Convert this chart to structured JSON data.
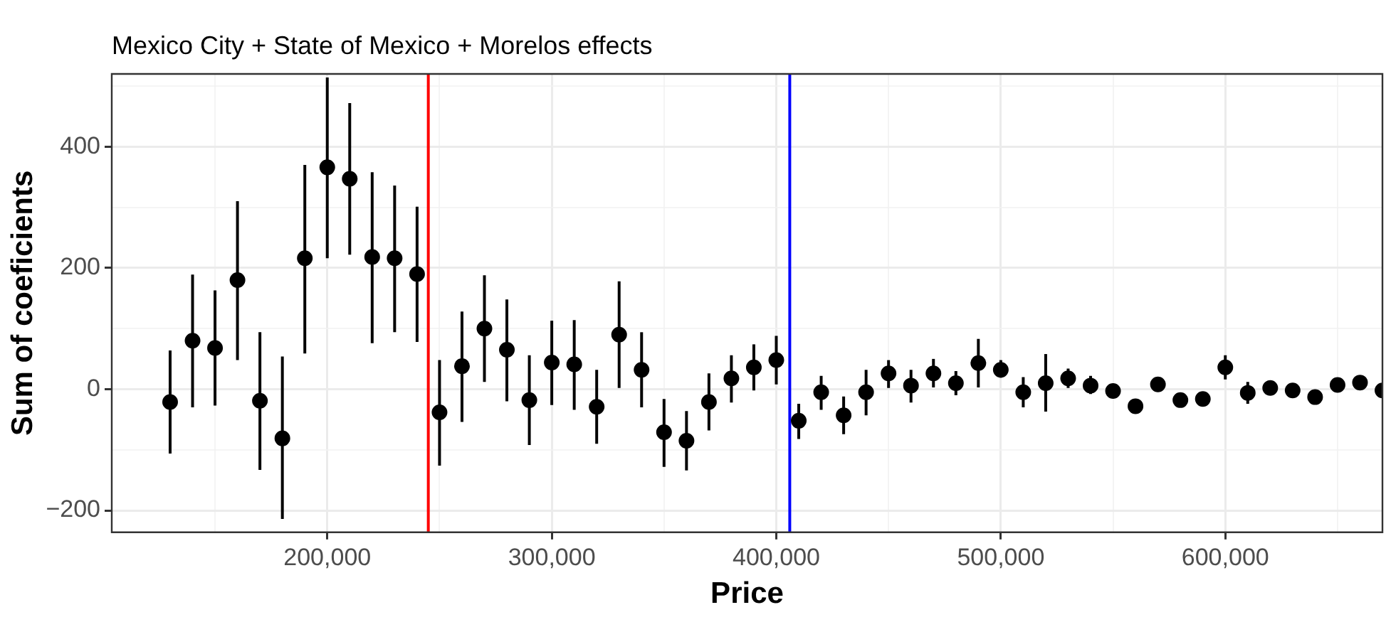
{
  "chart_data": {
    "type": "scatter",
    "title": "Mexico City + State of Mexico + Morelos effects",
    "xlabel": "Price",
    "ylabel": "Sum of coeficients",
    "x": [
      130000,
      140000,
      150000,
      160000,
      170000,
      180000,
      190000,
      200000,
      210000,
      220000,
      230000,
      240000,
      250000,
      260000,
      270000,
      280000,
      290000,
      300000,
      310000,
      320000,
      330000,
      340000,
      350000,
      360000,
      370000,
      380000,
      390000,
      400000,
      410000,
      420000,
      430000,
      440000,
      450000,
      460000,
      470000,
      480000,
      490000,
      500000,
      510000,
      520000,
      530000,
      540000,
      550000,
      560000,
      570000,
      580000,
      590000,
      600000,
      610000,
      620000,
      630000,
      640000,
      650000,
      660000,
      670000
    ],
    "series": [
      {
        "color": "#000000",
        "values": [
          -21,
          80,
          68,
          180,
          -19,
          -81,
          216,
          366,
          347,
          218,
          216,
          190,
          -38,
          38,
          100,
          65,
          -18,
          44,
          41,
          -29,
          90,
          32,
          -71,
          -85,
          -21,
          18,
          36,
          48,
          -52,
          -5,
          -43,
          -5,
          26,
          6,
          26,
          10,
          43,
          32,
          -5,
          10,
          18,
          6,
          -3,
          -28,
          8,
          -18,
          -16,
          36,
          -6,
          2,
          -2,
          -13,
          7,
          11,
          -2
        ],
        "errors": [
          [
            -106,
            64
          ],
          [
            -30,
            189
          ],
          [
            -27,
            163
          ],
          [
            48,
            310
          ],
          [
            -133,
            94
          ],
          [
            -214,
            54
          ],
          [
            59,
            370
          ],
          [
            216,
            514
          ],
          [
            222,
            472
          ],
          [
            76,
            358
          ],
          [
            94,
            336
          ],
          [
            78,
            301
          ],
          [
            -126,
            48
          ],
          [
            -54,
            128
          ],
          [
            12,
            188
          ],
          [
            -20,
            148
          ],
          [
            -92,
            56
          ],
          [
            -26,
            113
          ],
          [
            -34,
            114
          ],
          [
            -90,
            32
          ],
          [
            2,
            178
          ],
          [
            -30,
            94
          ],
          [
            -128,
            -16
          ],
          [
            -134,
            -36
          ],
          [
            -68,
            26
          ],
          [
            -22,
            56
          ],
          [
            -2,
            74
          ],
          [
            8,
            88
          ],
          [
            -82,
            -24
          ],
          [
            -34,
            22
          ],
          [
            -74,
            -12
          ],
          [
            -43,
            32
          ],
          [
            2,
            48
          ],
          [
            -22,
            32
          ],
          [
            3,
            50
          ],
          [
            -10,
            30
          ],
          [
            3,
            83
          ],
          [
            19,
            48
          ],
          [
            -30,
            20
          ],
          [
            -37,
            58
          ],
          [
            2,
            34
          ],
          [
            -8,
            22
          ],
          null,
          null,
          null,
          null,
          null,
          [
            16,
            56
          ],
          [
            -24,
            12
          ],
          null,
          null,
          null,
          null,
          null,
          null
        ]
      }
    ],
    "xlim": [
      104000,
      670000
    ],
    "xticks": [
      {
        "value": 150000,
        "label": null
      },
      {
        "value": 200000,
        "label": "200,000"
      },
      {
        "value": 250000,
        "label": null
      },
      {
        "value": 300000,
        "label": "300,000"
      },
      {
        "value": 350000,
        "label": null
      },
      {
        "value": 400000,
        "label": "400,000"
      },
      {
        "value": 450000,
        "label": null
      },
      {
        "value": 500000,
        "label": "500,000"
      },
      {
        "value": 550000,
        "label": null
      },
      {
        "value": 600000,
        "label": "600,000"
      },
      {
        "value": 650000,
        "label": null
      }
    ],
    "ylim": [
      -236,
      520
    ],
    "yticks": [
      {
        "value": -200,
        "label": "−200"
      },
      {
        "value": -100,
        "label": null
      },
      0,
      {
        "value": 100,
        "label": null
      },
      200,
      {
        "value": 300,
        "label": null
      },
      400,
      {
        "value": 500,
        "label": null
      }
    ],
    "ref_lines": [
      {
        "axis": "x",
        "value": 245000,
        "color": "#ff0000"
      },
      {
        "axis": "x",
        "value": 406000,
        "color": "#0000ff"
      }
    ],
    "grid": true,
    "legend": false,
    "marker": "circle"
  }
}
